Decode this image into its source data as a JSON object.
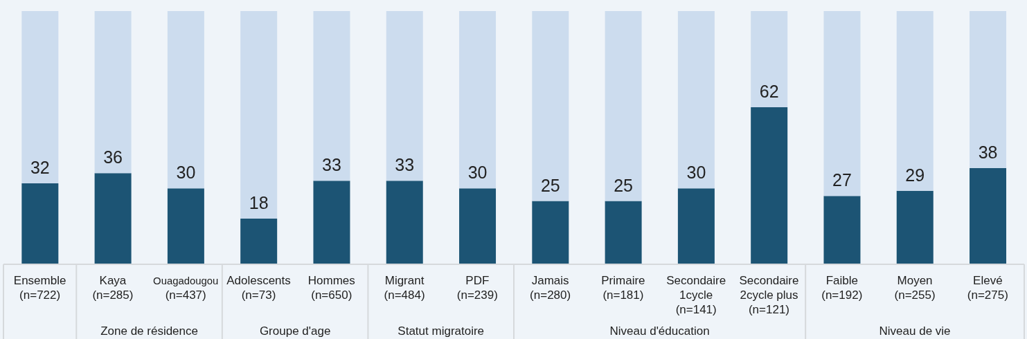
{
  "chart_data": {
    "type": "bar",
    "stacked": true,
    "tick_labels": "x",
    "categories": [
      "Ensemble (n=722)",
      "Kaya (n=285)",
      "Ouagadougou (n=437)",
      "Adolescents (n=73)",
      "Hommes (n=650)",
      "Migrant (n=484)",
      "PDF (n=239)",
      "Jamais (n=280)",
      "Primaire (n=181)",
      "Secondaire 1cycle (n=141)",
      "Secondaire 2cycle plus (n=121)",
      "Faible (n=192)",
      "Moyen (n=255)",
      "Elevé (n=275)"
    ],
    "series": [
      {
        "color": "#1c5474",
        "values": [
          32,
          36,
          30,
          18,
          33,
          33,
          30,
          25,
          25,
          30,
          62,
          27,
          29,
          38
        ],
        "value_labels": [
          "32",
          "36",
          "30",
          "18",
          "33",
          "33",
          "30",
          "25",
          "25",
          "30",
          "62",
          "27",
          "29",
          "38"
        ]
      },
      {
        "color": "#ccdcee",
        "values": [
          68,
          64,
          70,
          82,
          67,
          67,
          70,
          75,
          75,
          70,
          38,
          73,
          71,
          62
        ]
      }
    ],
    "annotations": [
      "Zone de résidence",
      "Groupe d'age",
      "Statut migratoire",
      "Niveau d'éducation",
      "Niveau de vie"
    ]
  }
}
